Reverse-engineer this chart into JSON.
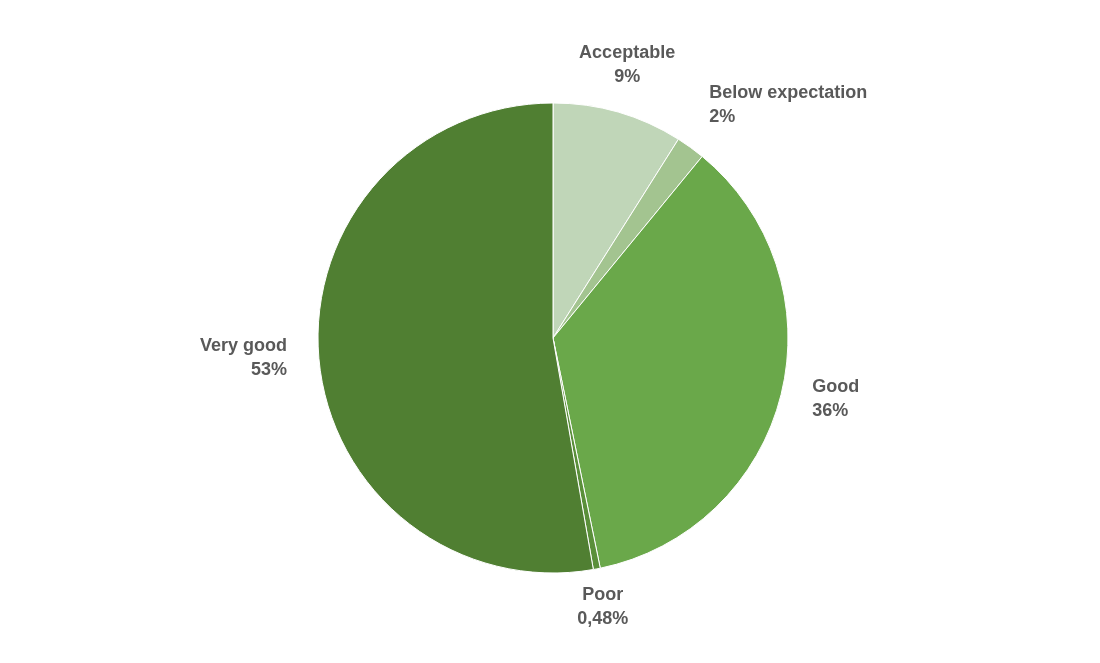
{
  "chart_data": {
    "type": "pie",
    "categories": [
      "Acceptable",
      "Below expectation",
      "Good",
      "Poor",
      "Very good"
    ],
    "values": [
      9,
      2,
      36,
      0.48,
      53
    ],
    "value_labels": [
      "9%",
      "2%",
      "36%",
      "0,48%",
      "53%"
    ],
    "colors": [
      "#c0d6b8",
      "#a3c490",
      "#6aa84a",
      "#5a8f3a",
      "#507f32"
    ]
  }
}
